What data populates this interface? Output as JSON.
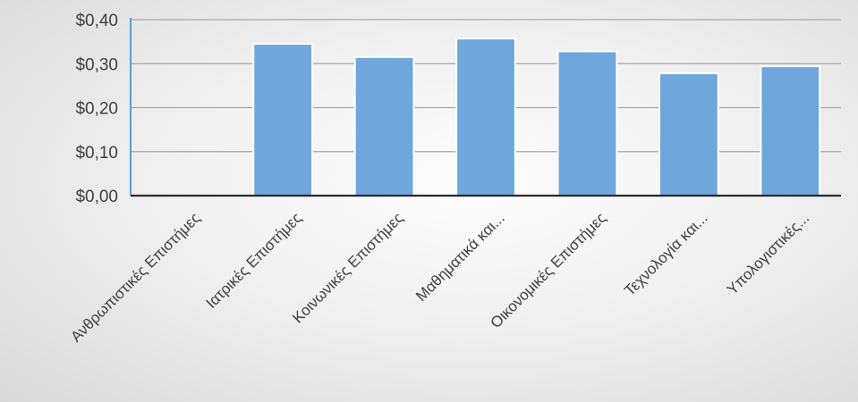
{
  "chart_data": {
    "type": "bar",
    "categories": [
      "Ανθρωπιστικές Επιστήμες",
      "Ιατρικές Επιστήμες",
      "Κοινωνικές Επιστήμες",
      "Μαθηματικά και...",
      "Οικονομικές Επιστήμες",
      "Τεχνολογία και...",
      "Υπολογιστικές..."
    ],
    "values": [
      0,
      0.345,
      0.315,
      0.357,
      0.328,
      0.278,
      0.294
    ],
    "title": "",
    "xlabel": "",
    "ylabel": "",
    "ylim": [
      0,
      0.4
    ],
    "yticks": [
      0,
      0.1,
      0.2,
      0.3,
      0.4
    ],
    "ytick_labels": [
      "$0,00",
      "$0,10",
      "$0,20",
      "$0,30",
      "$0,40"
    ],
    "grid": true,
    "legend": "none",
    "colors": {
      "bar": "#6fa7dc",
      "bar_outline": "#ffffff",
      "grid": "#a6a6a6",
      "axis": "#2a2a2a",
      "y_axis": "#5b9bd5",
      "text": "#404040"
    }
  }
}
